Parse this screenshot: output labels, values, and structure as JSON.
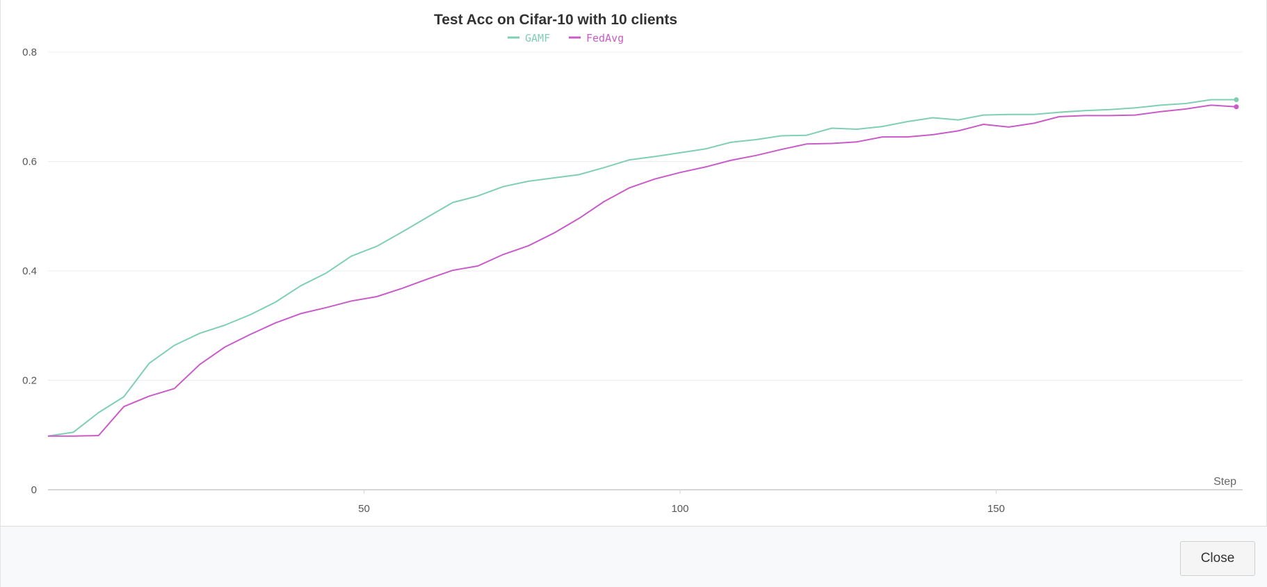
{
  "chart_data": {
    "type": "line",
    "title": "Test Acc on Cifar-10 with 10 clients",
    "xlabel": "Step",
    "ylabel": "",
    "xlim": [
      0,
      189
    ],
    "ylim": [
      0,
      0.8
    ],
    "xticks": [
      50,
      100,
      150
    ],
    "yticks": [
      0,
      0.2,
      0.4,
      0.6,
      0.8
    ],
    "grid": true,
    "legend_position": "top-center",
    "x": [
      0,
      4,
      8,
      12,
      16,
      20,
      24,
      28,
      32,
      36,
      40,
      44,
      48,
      52,
      56,
      60,
      64,
      68,
      72,
      76,
      80,
      84,
      88,
      92,
      96,
      100,
      104,
      108,
      112,
      116,
      120,
      124,
      128,
      132,
      136,
      140,
      144,
      148,
      152,
      156,
      160,
      164,
      168,
      172,
      176,
      180,
      184,
      188
    ],
    "series": [
      {
        "name": "GAMF",
        "color": "#7fcfb3",
        "values": [
          0.098,
          0.105,
          0.141,
          0.17,
          0.231,
          0.264,
          0.286,
          0.301,
          0.32,
          0.343,
          0.373,
          0.396,
          0.427,
          0.445,
          0.471,
          0.498,
          0.525,
          0.537,
          0.554,
          0.564,
          0.57,
          0.576,
          0.589,
          0.603,
          0.609,
          0.616,
          0.623,
          0.635,
          0.64,
          0.647,
          0.648,
          0.661,
          0.659,
          0.664,
          0.673,
          0.68,
          0.676,
          0.685,
          0.686,
          0.686,
          0.69,
          0.693,
          0.695,
          0.698,
          0.703,
          0.706,
          0.713,
          0.713
        ]
      },
      {
        "name": "FedAvg",
        "color": "#c95bc9",
        "values": [
          0.098,
          0.098,
          0.099,
          0.152,
          0.171,
          0.185,
          0.229,
          0.261,
          0.284,
          0.305,
          0.322,
          0.333,
          0.345,
          0.353,
          0.368,
          0.385,
          0.401,
          0.409,
          0.43,
          0.446,
          0.469,
          0.496,
          0.527,
          0.552,
          0.568,
          0.58,
          0.59,
          0.602,
          0.611,
          0.622,
          0.632,
          0.633,
          0.636,
          0.645,
          0.645,
          0.649,
          0.656,
          0.668,
          0.663,
          0.67,
          0.682,
          0.684,
          0.684,
          0.685,
          0.691,
          0.696,
          0.703,
          0.7
        ]
      }
    ]
  },
  "footer": {
    "close_label": "Close"
  }
}
